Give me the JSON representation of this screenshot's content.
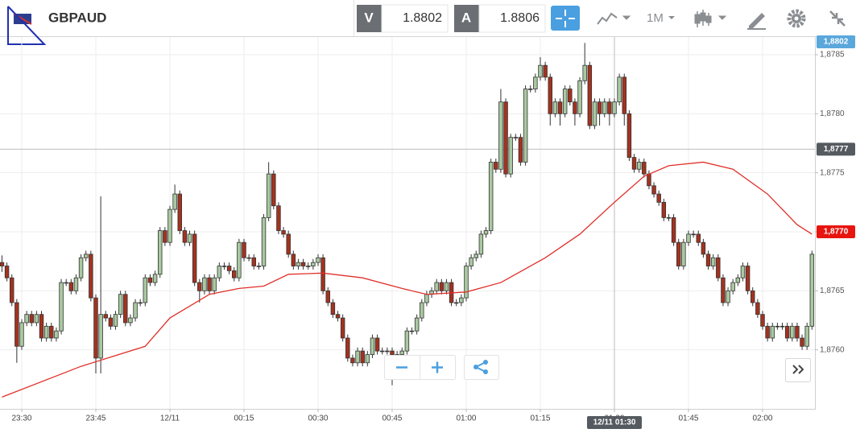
{
  "toolbar": {
    "symbol": "GBPAUD",
    "bid_label": "V",
    "bid": "1.8802",
    "ask_label": "A",
    "ask": "1.8806",
    "timeframe": "1M"
  },
  "chart_data": {
    "type": "candlestick",
    "x": [
      -4,
      -3,
      -2,
      -1,
      0,
      1,
      2,
      3,
      4,
      5,
      6,
      7,
      8,
      9,
      10,
      11,
      12,
      13,
      14,
      15,
      16,
      17,
      18,
      19,
      20,
      21,
      22,
      23,
      24,
      25,
      26,
      27,
      28,
      29,
      30,
      31,
      32,
      33,
      34,
      35,
      36,
      37,
      38,
      39,
      40,
      41,
      42,
      43,
      44,
      45,
      46,
      47,
      48,
      49,
      50,
      51,
      52,
      53,
      54,
      55,
      56,
      57,
      58,
      59,
      60,
      61,
      62,
      63,
      64,
      65,
      66,
      67,
      68,
      69,
      70,
      71,
      72,
      73,
      74,
      75,
      76,
      77,
      78,
      79,
      80,
      81,
      82,
      83,
      84,
      85,
      86,
      87,
      88,
      89,
      90,
      91,
      92,
      93,
      94,
      95,
      96,
      97,
      98,
      99,
      100,
      101,
      102,
      103,
      104,
      105,
      106,
      107,
      108,
      109,
      110,
      111,
      112,
      113,
      114,
      115,
      116,
      117,
      118,
      119,
      120,
      121,
      122,
      123,
      124,
      125,
      126,
      127,
      128,
      129,
      130,
      131,
      132,
      133,
      134,
      135,
      136,
      137,
      138,
      139,
      140,
      141,
      142,
      143,
      144,
      145,
      146,
      147,
      148,
      149,
      150,
      151,
      152,
      153,
      154,
      155,
      156,
      157,
      158,
      159,
      160
    ],
    "open": [
      1.87674,
      1.87671,
      1.87661,
      1.8764,
      1.87603,
      1.87623,
      1.8763,
      1.87623,
      1.8763,
      1.8761,
      1.8762,
      1.8761,
      1.87616,
      1.87657,
      1.87657,
      1.8765,
      1.87661,
      1.87678,
      1.87681,
      1.87644,
      1.87593,
      1.8763,
      1.87627,
      1.8762,
      1.8763,
      1.87647,
      1.87623,
      1.87627,
      1.8764,
      1.8764,
      1.87661,
      1.87657,
      1.87664,
      1.87701,
      1.87691,
      1.87719,
      1.87732,
      1.87701,
      1.87691,
      1.87698,
      1.87657,
      1.8765,
      1.87661,
      1.8765,
      1.87661,
      1.87671,
      1.87671,
      1.87667,
      1.87661,
      1.87691,
      1.87678,
      1.87678,
      1.87671,
      1.87671,
      1.87712,
      1.87749,
      1.87722,
      1.87701,
      1.87698,
      1.87681,
      1.87671,
      1.87674,
      1.87671,
      1.87671,
      1.87674,
      1.87678,
      1.8765,
      1.8764,
      1.8763,
      1.87627,
      1.8761,
      1.87593,
      1.87589,
      1.87599,
      1.87589,
      1.87596,
      1.8761,
      1.87599,
      1.87599,
      1.87599,
      1.87596,
      1.87596,
      1.87599,
      1.87616,
      1.87616,
      1.87627,
      1.8764,
      1.87647,
      1.8765,
      1.87657,
      1.8765,
      1.87657,
      1.8764,
      1.8764,
      1.87644,
      1.87671,
      1.87678,
      1.87681,
      1.87698,
      1.87701,
      1.87759,
      1.87753,
      1.8781,
      1.87749,
      1.8778,
      1.8778,
      1.87759,
      1.87821,
      1.87821,
      1.87831,
      1.87841,
      1.87831,
      1.878,
      1.8781,
      1.878,
      1.87821,
      1.8781,
      1.878,
      1.87828,
      1.87841,
      1.8779,
      1.8781,
      1.878,
      1.8781,
      1.878,
      1.8781,
      1.87831,
      1.878,
      1.87763,
      1.87753,
      1.87759,
      1.87749,
      1.87739,
      1.87732,
      1.87725,
      1.87712,
      1.87712,
      1.87691,
      1.87671,
      1.87691,
      1.87698,
      1.87698,
      1.87691,
      1.87681,
      1.87671,
      1.87678,
      1.87661,
      1.8764,
      1.8765,
      1.87657,
      1.87661,
      1.87671,
      1.8765,
      1.8764,
      1.8763,
      1.8762,
      1.8761,
      1.8762,
      1.8762,
      1.8762,
      1.8761,
      1.8762,
      1.8761,
      1.87603,
      1.8762
    ],
    "close": [
      1.87671,
      1.87661,
      1.8764,
      1.87603,
      1.87623,
      1.8763,
      1.87623,
      1.8763,
      1.8761,
      1.8762,
      1.8761,
      1.87616,
      1.87657,
      1.87657,
      1.8765,
      1.87661,
      1.87678,
      1.87681,
      1.87644,
      1.87593,
      1.8763,
      1.87627,
      1.8762,
      1.8763,
      1.87647,
      1.87623,
      1.87627,
      1.8764,
      1.8764,
      1.87661,
      1.87657,
      1.87664,
      1.87701,
      1.87691,
      1.87719,
      1.87732,
      1.87701,
      1.87691,
      1.87698,
      1.87657,
      1.8765,
      1.87661,
      1.8765,
      1.87661,
      1.87671,
      1.87671,
      1.87667,
      1.87661,
      1.87691,
      1.87678,
      1.87678,
      1.87671,
      1.87671,
      1.87712,
      1.87749,
      1.87722,
      1.87701,
      1.87698,
      1.87681,
      1.87671,
      1.87674,
      1.87671,
      1.87671,
      1.87674,
      1.87678,
      1.8765,
      1.8764,
      1.8763,
      1.87627,
      1.8761,
      1.87593,
      1.87589,
      1.87599,
      1.87589,
      1.87596,
      1.8761,
      1.87599,
      1.87599,
      1.87599,
      1.87596,
      1.87596,
      1.87599,
      1.87616,
      1.87616,
      1.87627,
      1.8764,
      1.87647,
      1.8765,
      1.87657,
      1.8765,
      1.87657,
      1.8764,
      1.8764,
      1.87644,
      1.87671,
      1.87678,
      1.87681,
      1.87698,
      1.87701,
      1.87759,
      1.87753,
      1.8781,
      1.87749,
      1.8778,
      1.8778,
      1.87759,
      1.87821,
      1.87821,
      1.87831,
      1.87841,
      1.87831,
      1.878,
      1.8781,
      1.878,
      1.87821,
      1.8781,
      1.878,
      1.87828,
      1.87841,
      1.8779,
      1.8781,
      1.878,
      1.8781,
      1.878,
      1.8781,
      1.87831,
      1.878,
      1.87763,
      1.87753,
      1.87759,
      1.87749,
      1.87739,
      1.87732,
      1.87725,
      1.87712,
      1.87712,
      1.87691,
      1.87671,
      1.87691,
      1.87698,
      1.87698,
      1.87691,
      1.87681,
      1.87671,
      1.87678,
      1.87661,
      1.8764,
      1.8765,
      1.87657,
      1.87661,
      1.87671,
      1.8765,
      1.8764,
      1.8763,
      1.8762,
      1.8761,
      1.8762,
      1.8762,
      1.8762,
      1.8761,
      1.8762,
      1.8761,
      1.87603,
      1.8762,
      1.87681
    ],
    "high": [
      1.8768,
      1.87674,
      1.87664,
      1.87643,
      1.87626,
      1.87633,
      1.87633,
      1.87633,
      1.87633,
      1.87623,
      1.87623,
      1.87619,
      1.8766,
      1.8766,
      1.8766,
      1.87664,
      1.87681,
      1.87684,
      1.87684,
      1.87647,
      1.8773,
      1.87633,
      1.8763,
      1.87633,
      1.8765,
      1.8765,
      1.8763,
      1.87643,
      1.87643,
      1.87664,
      1.87664,
      1.87667,
      1.87704,
      1.87704,
      1.87722,
      1.8774,
      1.87735,
      1.87704,
      1.87701,
      1.87701,
      1.8766,
      1.87664,
      1.87664,
      1.87664,
      1.87674,
      1.87674,
      1.87674,
      1.8767,
      1.87694,
      1.87694,
      1.87681,
      1.87681,
      1.87674,
      1.87715,
      1.87759,
      1.87752,
      1.87725,
      1.87704,
      1.87701,
      1.87684,
      1.87677,
      1.87677,
      1.87674,
      1.87677,
      1.87681,
      1.87681,
      1.87653,
      1.87643,
      1.87633,
      1.8763,
      1.87613,
      1.87596,
      1.87602,
      1.87602,
      1.87599,
      1.87613,
      1.87613,
      1.87602,
      1.87602,
      1.87602,
      1.87599,
      1.87602,
      1.87619,
      1.87619,
      1.8763,
      1.87643,
      1.8765,
      1.87653,
      1.8766,
      1.8766,
      1.8766,
      1.8766,
      1.87643,
      1.87647,
      1.87674,
      1.87681,
      1.87684,
      1.87701,
      1.87704,
      1.87762,
      1.87762,
      1.87821,
      1.87813,
      1.87783,
      1.87783,
      1.87783,
      1.87824,
      1.87824,
      1.87834,
      1.87848,
      1.87844,
      1.87834,
      1.87813,
      1.87813,
      1.87824,
      1.87824,
      1.87813,
      1.87831,
      1.8786,
      1.87844,
      1.87813,
      1.87813,
      1.87813,
      1.87813,
      1.87813,
      1.87834,
      1.87834,
      1.87803,
      1.87766,
      1.87762,
      1.87762,
      1.87752,
      1.87742,
      1.87735,
      1.87728,
      1.87715,
      1.87715,
      1.87694,
      1.87694,
      1.87701,
      1.87701,
      1.87701,
      1.87694,
      1.87684,
      1.87681,
      1.87681,
      1.87664,
      1.87653,
      1.8766,
      1.87664,
      1.87674,
      1.87674,
      1.87653,
      1.87643,
      1.87633,
      1.87623,
      1.87623,
      1.87623,
      1.87623,
      1.87623,
      1.87623,
      1.87623,
      1.87613,
      1.87623,
      1.87684
    ],
    "low": [
      1.87666,
      1.87658,
      1.87637,
      1.87589,
      1.876,
      1.8762,
      1.8762,
      1.8762,
      1.87607,
      1.87607,
      1.87607,
      1.87607,
      1.87613,
      1.87654,
      1.87647,
      1.87647,
      1.87658,
      1.87675,
      1.87641,
      1.8758,
      1.8758,
      1.87624,
      1.87617,
      1.87617,
      1.87627,
      1.8762,
      1.8762,
      1.87624,
      1.87637,
      1.87637,
      1.87654,
      1.87654,
      1.87661,
      1.87688,
      1.87688,
      1.87716,
      1.87698,
      1.87688,
      1.87688,
      1.87654,
      1.8764,
      1.87647,
      1.87647,
      1.87647,
      1.87658,
      1.87668,
      1.87664,
      1.87658,
      1.87658,
      1.87675,
      1.87675,
      1.87668,
      1.87668,
      1.87668,
      1.87709,
      1.87719,
      1.87698,
      1.87695,
      1.87678,
      1.87668,
      1.87668,
      1.87668,
      1.87668,
      1.87668,
      1.87671,
      1.87647,
      1.87637,
      1.87627,
      1.87624,
      1.87607,
      1.8759,
      1.87586,
      1.87586,
      1.87586,
      1.87586,
      1.87593,
      1.87596,
      1.87596,
      1.87596,
      1.8757,
      1.87593,
      1.87593,
      1.87596,
      1.87613,
      1.87613,
      1.87624,
      1.87637,
      1.87644,
      1.87647,
      1.87647,
      1.87647,
      1.87637,
      1.87637,
      1.87637,
      1.87641,
      1.87668,
      1.87675,
      1.87678,
      1.87695,
      1.87698,
      1.8775,
      1.8775,
      1.87746,
      1.87746,
      1.87777,
      1.87756,
      1.87756,
      1.87818,
      1.87818,
      1.87828,
      1.87828,
      1.8779,
      1.87797,
      1.8779,
      1.87797,
      1.87807,
      1.8779,
      1.87797,
      1.87825,
      1.87787,
      1.87787,
      1.8779,
      1.87797,
      1.8779,
      1.87797,
      1.87807,
      1.8779,
      1.8776,
      1.8775,
      1.8775,
      1.87746,
      1.87736,
      1.87729,
      1.87722,
      1.87709,
      1.87709,
      1.87688,
      1.87668,
      1.87668,
      1.87688,
      1.87695,
      1.87688,
      1.87678,
      1.87668,
      1.87668,
      1.87658,
      1.87637,
      1.87637,
      1.87647,
      1.87654,
      1.87658,
      1.87647,
      1.87637,
      1.87627,
      1.87617,
      1.87607,
      1.87607,
      1.87617,
      1.87617,
      1.87607,
      1.87607,
      1.87607,
      1.876,
      1.876,
      1.87617
    ],
    "color_up": "#a9c9a0",
    "color_down": "#a3321f",
    "line": {
      "color": "#e0302a",
      "x": [
        -4,
        12,
        25,
        30,
        38,
        44,
        49,
        54,
        61,
        69,
        77,
        82,
        90,
        97,
        106,
        113,
        120,
        126,
        131,
        138,
        144,
        151,
        157,
        160
      ],
      "values": [
        1.8756,
        1.87586,
        1.87603,
        1.87627,
        1.87647,
        1.87652,
        1.87654,
        1.87664,
        1.87665,
        1.87661,
        1.87652,
        1.87647,
        1.87649,
        1.87657,
        1.87678,
        1.87698,
        1.87725,
        1.87747,
        1.87756,
        1.87759,
        1.87753,
        1.87732,
        1.87706,
        1.87698
      ]
    },
    "xlim": [
      -4.4,
      160.6
    ],
    "xticks": [
      {
        "value": 0,
        "label": "23:30"
      },
      {
        "value": 15,
        "label": "23:45"
      },
      {
        "value": 30,
        "label": "12/11"
      },
      {
        "value": 45,
        "label": "00:15"
      },
      {
        "value": 60,
        "label": "00:30"
      },
      {
        "value": 75,
        "label": "00:45"
      },
      {
        "value": 90,
        "label": "01:00"
      },
      {
        "value": 105,
        "label": "01:15"
      },
      {
        "value": 120,
        "label": "01:30"
      },
      {
        "value": 135,
        "label": "01:45"
      },
      {
        "value": 150,
        "label": "02:00"
      }
    ],
    "ylim": [
      1.8755,
      1.87865
    ],
    "yticks": [
      {
        "value": 1.876,
        "label": "1,8760"
      },
      {
        "value": 1.8765,
        "label": "1,8765"
      },
      {
        "value": 1.877,
        "label": "1,8770"
      },
      {
        "value": 1.8775,
        "label": "1,8775"
      },
      {
        "value": 1.878,
        "label": "1,8780"
      },
      {
        "value": 1.8785,
        "label": "1,8785"
      }
    ],
    "grid": true,
    "bid_marker": {
      "value": 1.8802,
      "label": "1,8802",
      "color": "#5aa7dc"
    },
    "crosshair": {
      "x": 120,
      "x_label": "12/11 01:30",
      "y": 1.8777,
      "y_label": "1,8777",
      "color": "#555a60"
    },
    "line_marker": {
      "value": 1.877,
      "label": "1,8770",
      "color": "#e8150f"
    }
  }
}
